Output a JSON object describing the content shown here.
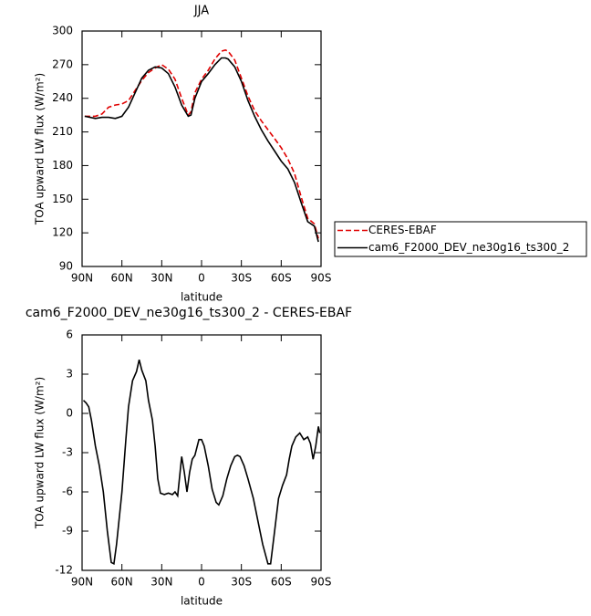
{
  "chart_data": [
    {
      "type": "line",
      "title": "JJA",
      "xlabel": "latitude",
      "ylabel": "TOA upward LW flux (W/m²)",
      "xlim": [
        90,
        -90
      ],
      "xticks": [
        {
          "value": 90,
          "label": "90N"
        },
        {
          "value": 60,
          "label": "60N"
        },
        {
          "value": 30,
          "label": "30N"
        },
        0,
        {
          "value": -30,
          "label": "30S"
        },
        {
          "value": -60,
          "label": "60S"
        },
        {
          "value": -90,
          "label": "90S"
        }
      ],
      "ylim": [
        90,
        300
      ],
      "yticks": [
        90,
        120,
        150,
        180,
        210,
        240,
        270,
        300
      ],
      "legend": "right",
      "x": [
        88,
        80,
        75,
        70,
        65,
        60,
        55,
        50,
        45,
        40,
        35,
        30,
        25,
        20,
        15,
        10,
        8,
        5,
        0,
        -5,
        -10,
        -15,
        -18,
        -20,
        -25,
        -30,
        -35,
        -40,
        -45,
        -50,
        -55,
        -60,
        -65,
        -70,
        -75,
        -80,
        -85,
        -88
      ],
      "series": [
        {
          "name": "CERES-EBAF",
          "color": "#e00000",
          "dash": true,
          "values": [
            224,
            224,
            226,
            232,
            234,
            235,
            238,
            247,
            256,
            263,
            267,
            270,
            266,
            257,
            240,
            225,
            228,
            245,
            257,
            265,
            275,
            282,
            283,
            282,
            274,
            258,
            242,
            229,
            220,
            212,
            204,
            196,
            186,
            173,
            152,
            133,
            128,
            115
          ]
        },
        {
          "name": "cam6_F2000_DEV_ne30g16_ts300_2",
          "color": "#000000",
          "dash": false,
          "values": [
            224,
            222,
            223,
            223,
            222,
            224,
            232,
            245,
            258,
            265,
            268,
            267,
            262,
            250,
            234,
            224,
            225,
            240,
            255,
            262,
            270,
            276,
            276,
            275,
            268,
            255,
            238,
            224,
            212,
            202,
            193,
            184,
            177,
            165,
            147,
            130,
            126,
            112
          ]
        }
      ]
    },
    {
      "type": "line",
      "title": "cam6_F2000_DEV_ne30g16_ts300_2 - CERES-EBAF",
      "xlabel": "latitude",
      "ylabel": "TOA upward LW flux (W/m²)",
      "xlim": [
        90,
        -90
      ],
      "xticks": [
        {
          "value": 90,
          "label": "90N"
        },
        {
          "value": 60,
          "label": "60N"
        },
        {
          "value": 30,
          "label": "30N"
        },
        0,
        {
          "value": -30,
          "label": "30S"
        },
        {
          "value": -60,
          "label": "60S"
        },
        {
          "value": -90,
          "label": "90S"
        }
      ],
      "ylim": [
        -12,
        6
      ],
      "yticks": [
        -12,
        -9,
        -6,
        -3,
        0,
        3,
        6
      ],
      "x": [
        89,
        87,
        85,
        83,
        80,
        77,
        74,
        71,
        68,
        66,
        64,
        60,
        57,
        55,
        52,
        49,
        47,
        45,
        42,
        40,
        37,
        35,
        33,
        31,
        28,
        25,
        22,
        20,
        18,
        15,
        13,
        11,
        9,
        7,
        5,
        2,
        0,
        -2,
        -5,
        -8,
        -11,
        -13,
        -16,
        -19,
        -22,
        -25,
        -27,
        -29,
        -32,
        -35,
        -39,
        -43,
        -46,
        -50,
        -52,
        -55,
        -58,
        -61,
        -64,
        -66,
        -68,
        -71,
        -74,
        -77,
        -80,
        -82,
        -84,
        -86,
        -88,
        -89
      ],
      "series": [
        {
          "color": "#000000",
          "dash": false,
          "values": [
            1,
            0.8,
            0.5,
            -0.5,
            -2.5,
            -4,
            -6,
            -9,
            -11.4,
            -11.5,
            -10,
            -6,
            -2,
            0.5,
            2.5,
            3.2,
            4.1,
            3.3,
            2.5,
            1,
            -0.5,
            -2.5,
            -5,
            -6.1,
            -6.2,
            -6.1,
            -6.2,
            -6,
            -6.3,
            -3.3,
            -4.5,
            -6,
            -4.5,
            -3.5,
            -3.2,
            -2,
            -2,
            -2.5,
            -4,
            -5.8,
            -6.8,
            -7,
            -6.3,
            -5,
            -4,
            -3.3,
            -3.2,
            -3.3,
            -4,
            -5,
            -6.5,
            -8.5,
            -10,
            -11.5,
            -11.5,
            -9,
            -6.5,
            -5.5,
            -4.7,
            -3.5,
            -2.5,
            -1.8,
            -1.5,
            -2,
            -1.8,
            -2.3,
            -3.5,
            -2.5,
            -1,
            -1.5
          ]
        }
      ]
    }
  ]
}
